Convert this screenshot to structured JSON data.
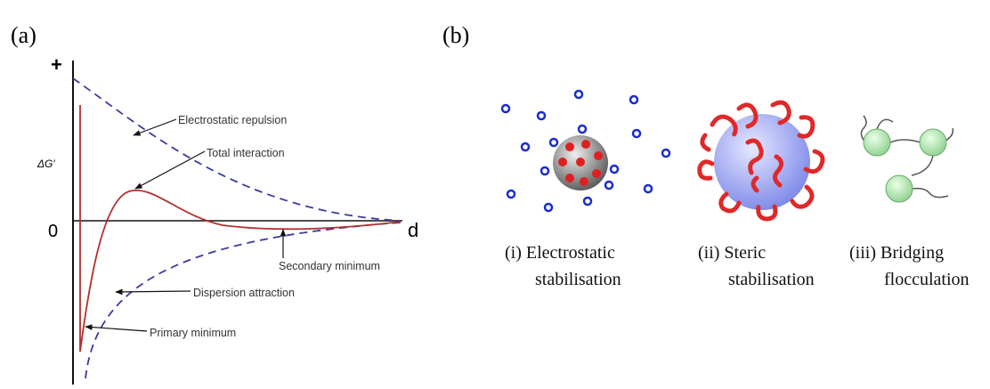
{
  "panel_a": {
    "label": "(a)",
    "y_plus": "+",
    "y_axis_label": "ΔG′",
    "zero_label": "0",
    "x_axis_label": "d",
    "annotations": [
      "Electrostatic repulsion",
      "Total interaction",
      "Secondary minimum",
      "Dispersion attraction",
      "Primary minimum"
    ]
  },
  "panel_b": {
    "label": "(b)",
    "items": [
      {
        "line1": "(i) Electrostatic",
        "line2": "stabilisation"
      },
      {
        "line1": "(ii) Steric",
        "line2": "stabilisation"
      },
      {
        "line1": "(iii) Bridging",
        "line2": "flocculation"
      }
    ]
  }
}
